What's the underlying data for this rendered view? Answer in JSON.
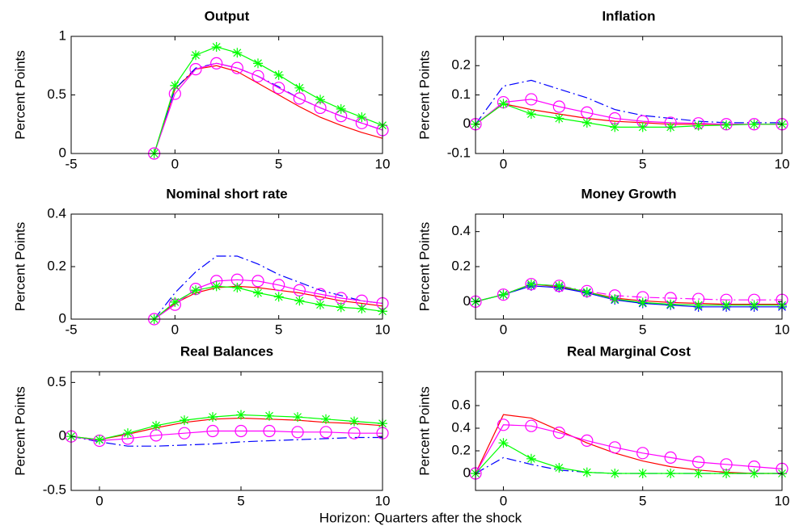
{
  "xlabel": "Horizon: Quarters after the shock",
  "chart_data": [
    {
      "type": "line",
      "title": "Output",
      "ylabel": "Percent Points",
      "x": [
        -1,
        0,
        1,
        2,
        3,
        4,
        5,
        6,
        7,
        8,
        9,
        10
      ],
      "xlim": [
        -5,
        10
      ],
      "xticks": [
        -5,
        0,
        5,
        10
      ],
      "ylim": [
        0,
        1
      ],
      "yticks": [
        0,
        0.5,
        1
      ],
      "series": [
        {
          "color": "#ff0000",
          "line": "solid",
          "marker": "none",
          "values": [
            0,
            0.55,
            0.72,
            0.75,
            0.7,
            0.6,
            0.5,
            0.4,
            0.31,
            0.24,
            0.18,
            0.13
          ]
        },
        {
          "color": "#0000ff",
          "line": "dashdot",
          "marker": "none",
          "values": [
            0,
            0.55,
            0.73,
            0.77,
            0.73,
            0.66,
            0.57,
            0.47,
            0.39,
            0.32,
            0.26,
            0.2
          ]
        },
        {
          "color": "#ff00ff",
          "line": "solid",
          "marker": "circle",
          "values": [
            0,
            0.51,
            0.72,
            0.77,
            0.73,
            0.66,
            0.56,
            0.47,
            0.39,
            0.32,
            0.26,
            0.2
          ]
        },
        {
          "color": "#00ff00",
          "line": "solid",
          "marker": "star",
          "values": [
            0,
            0.58,
            0.84,
            0.91,
            0.86,
            0.77,
            0.67,
            0.56,
            0.46,
            0.38,
            0.31,
            0.24
          ]
        }
      ]
    },
    {
      "type": "line",
      "title": "Inflation",
      "ylabel": "Percent Points",
      "x": [
        -1,
        0,
        1,
        2,
        3,
        4,
        5,
        6,
        7,
        8,
        9,
        10
      ],
      "xlim": [
        -1,
        10
      ],
      "xticks": [
        0,
        5,
        10
      ],
      "ylim": [
        -0.1,
        0.3
      ],
      "yticks": [
        -0.1,
        0,
        0.1,
        0.2
      ],
      "series": [
        {
          "color": "#ff0000",
          "line": "solid",
          "marker": "none",
          "values": [
            0,
            0.07,
            0.05,
            0.035,
            0.02,
            0.01,
            0.005,
            0,
            0,
            0,
            0,
            0
          ]
        },
        {
          "color": "#0000ff",
          "line": "dashdot",
          "marker": "none",
          "values": [
            0,
            0.13,
            0.15,
            0.12,
            0.09,
            0.05,
            0.03,
            0.02,
            0.01,
            0.005,
            0.005,
            0.005
          ]
        },
        {
          "color": "#ff00ff",
          "line": "solid",
          "marker": "circle",
          "values": [
            0,
            0.075,
            0.085,
            0.06,
            0.04,
            0.02,
            0.01,
            0.005,
            0.003,
            0,
            0,
            0
          ]
        },
        {
          "color": "#00ff00",
          "line": "solid",
          "marker": "star",
          "values": [
            0,
            0.07,
            0.035,
            0.02,
            0.005,
            -0.01,
            -0.01,
            -0.01,
            -0.005,
            -0.003,
            0,
            0
          ]
        }
      ]
    },
    {
      "type": "line",
      "title": "Nominal short rate",
      "ylabel": "Percent Points",
      "x": [
        -1,
        0,
        1,
        2,
        3,
        4,
        5,
        6,
        7,
        8,
        9,
        10
      ],
      "xlim": [
        -5,
        10
      ],
      "xticks": [
        -5,
        0,
        5,
        10
      ],
      "ylim": [
        0,
        0.4
      ],
      "yticks": [
        0,
        0.2,
        0.4
      ],
      "series": [
        {
          "color": "#ff0000",
          "line": "solid",
          "marker": "none",
          "values": [
            0,
            0.06,
            0.1,
            0.12,
            0.125,
            0.12,
            0.11,
            0.1,
            0.085,
            0.07,
            0.06,
            0.05
          ]
        },
        {
          "color": "#0000ff",
          "line": "dashdot",
          "marker": "none",
          "values": [
            0,
            0.1,
            0.18,
            0.24,
            0.24,
            0.21,
            0.17,
            0.14,
            0.11,
            0.09,
            0.07,
            0.06
          ]
        },
        {
          "color": "#ff00ff",
          "line": "solid",
          "marker": "circle",
          "values": [
            0,
            0.055,
            0.115,
            0.145,
            0.15,
            0.145,
            0.13,
            0.11,
            0.095,
            0.08,
            0.07,
            0.06
          ]
        },
        {
          "color": "#00ff00",
          "line": "solid",
          "marker": "star",
          "values": [
            0,
            0.065,
            0.11,
            0.125,
            0.12,
            0.1,
            0.085,
            0.07,
            0.055,
            0.045,
            0.04,
            0.03
          ]
        }
      ]
    },
    {
      "type": "line",
      "title": "Money Growth",
      "ylabel": "Percent Points",
      "x": [
        -1,
        0,
        1,
        2,
        3,
        4,
        5,
        6,
        7,
        8,
        9,
        10
      ],
      "xlim": [
        -1,
        10
      ],
      "xticks": [
        0,
        5,
        10
      ],
      "ylim": [
        -0.1,
        0.5
      ],
      "yticks": [
        0,
        0.2,
        0.4
      ],
      "series": [
        {
          "color": "#ff0000",
          "line": "solid",
          "marker": "none",
          "values": [
            0,
            0.04,
            0.1,
            0.085,
            0.055,
            0.02,
            0.005,
            -0.005,
            -0.01,
            -0.015,
            -0.015,
            -0.015
          ]
        },
        {
          "color": "#0000ff",
          "line": "solid",
          "marker": "star",
          "values": [
            0,
            0.04,
            0.09,
            0.08,
            0.05,
            0.01,
            -0.01,
            -0.02,
            -0.03,
            -0.03,
            -0.03,
            -0.03
          ]
        },
        {
          "color": "#ff00ff",
          "line": "dashdot",
          "marker": "circle",
          "values": [
            0,
            0.04,
            0.1,
            0.09,
            0.06,
            0.035,
            0.025,
            0.02,
            0.015,
            0.01,
            0.01,
            0.01
          ]
        },
        {
          "color": "#00ff00",
          "line": "solid",
          "marker": "star",
          "values": [
            0,
            0.04,
            0.1,
            0.09,
            0.055,
            0.015,
            -0.005,
            -0.015,
            -0.02,
            -0.02,
            -0.02,
            -0.02
          ]
        }
      ]
    },
    {
      "type": "line",
      "title": "Real Balances",
      "ylabel": "Percent Points",
      "x": [
        -1,
        0,
        1,
        2,
        3,
        4,
        5,
        6,
        7,
        8,
        9,
        10
      ],
      "xlim": [
        -1,
        10
      ],
      "xticks": [
        0,
        5,
        10
      ],
      "ylim": [
        -0.5,
        0.6
      ],
      "yticks": [
        -0.5,
        0,
        0.5
      ],
      "series": [
        {
          "color": "#ff0000",
          "line": "solid",
          "marker": "none",
          "values": [
            0,
            -0.03,
            0.02,
            0.08,
            0.13,
            0.16,
            0.17,
            0.16,
            0.15,
            0.13,
            0.12,
            0.1
          ]
        },
        {
          "color": "#0000ff",
          "line": "dashdot",
          "marker": "none",
          "values": [
            0,
            -0.05,
            -0.09,
            -0.09,
            -0.08,
            -0.07,
            -0.05,
            -0.04,
            -0.03,
            -0.02,
            -0.01,
            -0.01
          ]
        },
        {
          "color": "#ff00ff",
          "line": "solid",
          "marker": "circle",
          "values": [
            0,
            -0.04,
            -0.02,
            0.01,
            0.03,
            0.05,
            0.05,
            0.05,
            0.04,
            0.04,
            0.03,
            0.03
          ]
        },
        {
          "color": "#00ff00",
          "line": "solid",
          "marker": "star",
          "values": [
            0,
            -0.03,
            0.03,
            0.1,
            0.15,
            0.18,
            0.2,
            0.19,
            0.18,
            0.16,
            0.14,
            0.12
          ]
        }
      ]
    },
    {
      "type": "line",
      "title": "Real Marginal Cost",
      "ylabel": "Percent Points",
      "x": [
        -1,
        0,
        1,
        2,
        3,
        4,
        5,
        6,
        7,
        8,
        9,
        10
      ],
      "xlim": [
        -1,
        10
      ],
      "xticks": [
        0,
        5,
        10
      ],
      "ylim": [
        -0.15,
        0.9
      ],
      "yticks": [
        0,
        0.2,
        0.4,
        0.6
      ],
      "series": [
        {
          "color": "#ff0000",
          "line": "solid",
          "marker": "none",
          "values": [
            0,
            0.52,
            0.49,
            0.38,
            0.27,
            0.18,
            0.11,
            0.06,
            0.03,
            0.01,
            0,
            0
          ]
        },
        {
          "color": "#0000ff",
          "line": "dashdot",
          "marker": "none",
          "values": [
            0,
            0.14,
            0.08,
            0.03,
            0.01,
            0,
            0,
            0,
            0,
            0,
            0,
            0
          ]
        },
        {
          "color": "#ff00ff",
          "line": "solid",
          "marker": "circle",
          "values": [
            0,
            0.43,
            0.42,
            0.36,
            0.29,
            0.23,
            0.18,
            0.14,
            0.1,
            0.08,
            0.06,
            0.04
          ]
        },
        {
          "color": "#00ff00",
          "line": "solid",
          "marker": "star",
          "values": [
            0,
            0.27,
            0.13,
            0.05,
            0.01,
            0,
            0,
            0,
            0,
            0,
            0,
            0
          ]
        }
      ]
    }
  ]
}
